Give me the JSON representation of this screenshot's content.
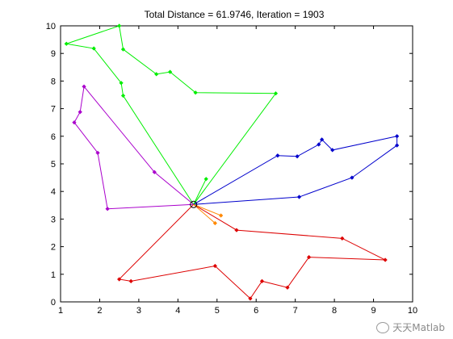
{
  "chart_data": {
    "type": "line",
    "title": "Total Distance = 61.9746, Iteration = 1903",
    "xlabel": "",
    "ylabel": "",
    "xlim": [
      1,
      10
    ],
    "ylim": [
      0,
      10
    ],
    "x_ticks": [
      1,
      2,
      3,
      4,
      5,
      6,
      7,
      8,
      9,
      10
    ],
    "y_ticks": [
      0,
      1,
      2,
      3,
      4,
      5,
      6,
      7,
      8,
      9,
      10
    ],
    "grid": false,
    "depot": {
      "x": 4.4,
      "y": 3.53
    },
    "series": [
      {
        "color": "#00ee00",
        "points": [
          [
            4.4,
            3.53
          ],
          [
            6.5,
            7.55
          ],
          [
            4.45,
            7.58
          ],
          [
            3.8,
            8.33
          ],
          [
            3.45,
            8.25
          ],
          [
            2.6,
            9.15
          ],
          [
            2.5,
            10
          ],
          [
            1.15,
            9.35
          ],
          [
            1.85,
            9.18
          ],
          [
            2.55,
            7.93
          ],
          [
            2.6,
            7.47
          ],
          [
            4.4,
            3.53
          ]
        ]
      },
      {
        "color": "#aa00cc",
        "points": [
          [
            4.4,
            3.53
          ],
          [
            3.4,
            4.7
          ],
          [
            1.6,
            7.8
          ],
          [
            1.5,
            6.88
          ],
          [
            1.35,
            6.5
          ],
          [
            1.95,
            5.4
          ],
          [
            2.2,
            3.37
          ],
          [
            4.4,
            3.53
          ]
        ]
      },
      {
        "color": "#0000cc",
        "points": [
          [
            4.4,
            3.53
          ],
          [
            6.55,
            5.3
          ],
          [
            7.05,
            5.27
          ],
          [
            7.6,
            5.7
          ],
          [
            7.68,
            5.88
          ],
          [
            7.95,
            5.5
          ],
          [
            9.6,
            6.0
          ],
          [
            9.6,
            5.67
          ],
          [
            8.45,
            4.5
          ],
          [
            7.1,
            3.8
          ],
          [
            4.4,
            3.53
          ]
        ]
      },
      {
        "color": "#dd0000",
        "points": [
          [
            4.4,
            3.53
          ],
          [
            5.5,
            2.6
          ],
          [
            8.2,
            2.3
          ],
          [
            9.3,
            1.52
          ],
          [
            7.35,
            1.62
          ],
          [
            6.8,
            0.52
          ],
          [
            6.15,
            0.75
          ],
          [
            5.85,
            0.12
          ],
          [
            4.95,
            1.3
          ],
          [
            2.8,
            0.75
          ],
          [
            2.5,
            0.82
          ],
          [
            4.4,
            3.53
          ]
        ]
      },
      {
        "color": "#ff8800",
        "points": [
          [
            4.4,
            3.53
          ],
          [
            4.95,
            2.85
          ],
          [
            4.4,
            3.53
          ],
          [
            5.1,
            3.13
          ],
          [
            4.4,
            3.53
          ]
        ]
      },
      {
        "color": "#00ee00",
        "points": [
          [
            4.4,
            3.53
          ],
          [
            4.72,
            4.45
          ]
        ]
      }
    ]
  },
  "watermark": {
    "text": "天天Matlab"
  }
}
